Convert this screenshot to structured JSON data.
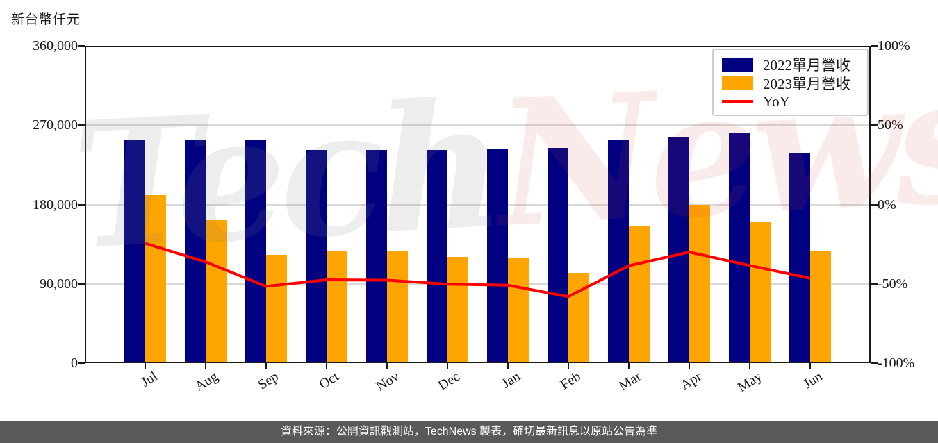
{
  "watermark": {
    "part1": "Tech",
    "part2": "News",
    "color1": "rgba(130,130,130,0.14)",
    "color2": "rgba(214,69,69,0.11)"
  },
  "footer": {
    "text": "資料來源：公開資訊觀測站，TechNews 製表，確切最新訊息以原站公告為準"
  },
  "colors": {
    "navy": "#000080",
    "orange": "#FFA500",
    "red": "#FF0000",
    "grid": "#D9D9D9",
    "footer_bg": "#58595B",
    "axis": "#1a1a1a"
  },
  "chart_data": {
    "type": "bar",
    "title": "",
    "categories": [
      "Jul",
      "Aug",
      "Sep",
      "Oct",
      "Nov",
      "Dec",
      "Jan",
      "Feb",
      "Mar",
      "Apr",
      "May",
      "Jun"
    ],
    "series": [
      {
        "name": "2022單月營收",
        "type": "bar",
        "axis": "left",
        "color": "#000080",
        "values": [
          253000,
          254000,
          254000,
          242000,
          242000,
          242000,
          243500,
          244500,
          254000,
          257000,
          261500,
          238500
        ]
      },
      {
        "name": "2023單月營收",
        "type": "bar",
        "axis": "left",
        "color": "#FFA500",
        "values": [
          191000,
          162000,
          123000,
          127000,
          126500,
          120500,
          119500,
          102500,
          156000,
          180000,
          161000,
          127500
        ]
      },
      {
        "name": "YoY",
        "type": "line",
        "axis": "right",
        "color": "#FF0000",
        "values": [
          -24.5,
          -36.2,
          -51.6,
          -47.5,
          -47.7,
          -50.2,
          -50.9,
          -58.1,
          -38.6,
          -30.0,
          -38.5,
          -46.5
        ]
      }
    ],
    "left_axis": {
      "title": "新台幣仟元",
      "range": [
        0,
        360000
      ],
      "ticks": [
        {
          "label": "0",
          "value": 0
        },
        {
          "label": "90,000",
          "value": 90000
        },
        {
          "label": "180,000",
          "value": 180000
        },
        {
          "label": "270,000",
          "value": 270000
        },
        {
          "label": "360,000",
          "value": 360000
        }
      ]
    },
    "right_axis": {
      "range": [
        -100,
        100
      ],
      "ticks": [
        {
          "label": "-100%",
          "value": -100
        },
        {
          "label": "-50%",
          "value": -50
        },
        {
          "label": "0%",
          "value": 0
        },
        {
          "label": "50%",
          "value": 50
        },
        {
          "label": "100%",
          "value": 100
        }
      ]
    },
    "grid": "horizontal-inner",
    "legend_position": "top-right"
  }
}
